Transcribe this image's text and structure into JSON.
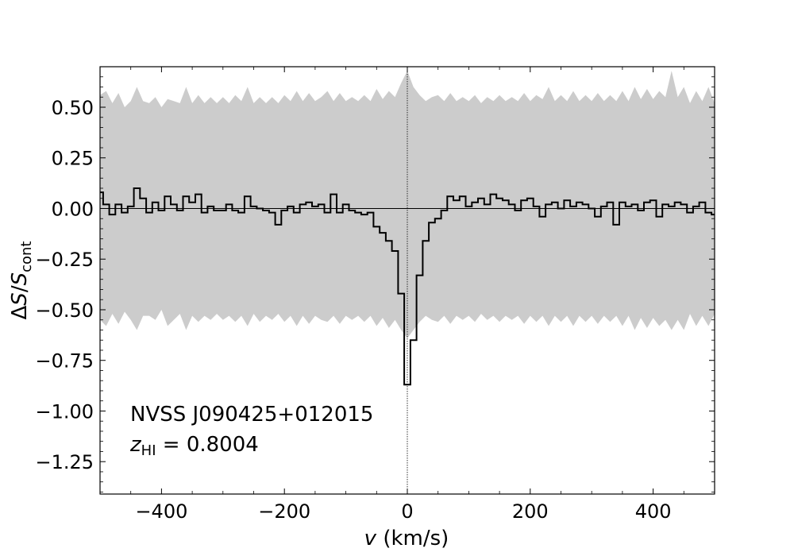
{
  "chart_data": {
    "type": "line",
    "title": "",
    "xlabel": {
      "var": "v",
      "unit": " (km/s)"
    },
    "ylabel": {
      "delta": "Δ",
      "num": "S",
      "slash": "/",
      "den": "S",
      "den_sub": "cont"
    },
    "xlim": [
      -500,
      500
    ],
    "ylim": [
      -1.41,
      0.7
    ],
    "xticks": [
      -400,
      -200,
      0,
      200,
      400
    ],
    "xtick_labels": [
      "−400",
      "−200",
      "0",
      "200",
      "400"
    ],
    "yticks": [
      0.5,
      0.25,
      0.0,
      -0.25,
      -0.5,
      -0.75,
      -1.0,
      -1.25
    ],
    "ytick_labels": [
      "0.50",
      "0.25",
      "0.00",
      "−0.25",
      "−0.50",
      "−0.75",
      "−1.00",
      "−1.25"
    ],
    "reference_lines": {
      "horizontal_y": 0.0,
      "vertical_x": 0.0
    },
    "noise_band": {
      "name": "noise envelope",
      "color": "#cccccc",
      "x": [
        -500,
        -490,
        -480,
        -470,
        -460,
        -450,
        -440,
        -430,
        -420,
        -410,
        -400,
        -390,
        -380,
        -370,
        -360,
        -350,
        -340,
        -330,
        -320,
        -310,
        -300,
        -290,
        -280,
        -270,
        -260,
        -250,
        -240,
        -230,
        -220,
        -210,
        -200,
        -190,
        -180,
        -170,
        -160,
        -150,
        -140,
        -130,
        -120,
        -110,
        -100,
        -90,
        -80,
        -70,
        -60,
        -50,
        -40,
        -30,
        -20,
        -10,
        0,
        10,
        20,
        30,
        40,
        50,
        60,
        70,
        80,
        90,
        100,
        110,
        120,
        130,
        140,
        150,
        160,
        170,
        180,
        190,
        200,
        210,
        220,
        230,
        240,
        250,
        260,
        270,
        280,
        290,
        300,
        310,
        320,
        330,
        340,
        350,
        360,
        370,
        380,
        390,
        400,
        410,
        420,
        430,
        440,
        450,
        460,
        470,
        480,
        490,
        500
      ],
      "upper": [
        0.56,
        0.58,
        0.52,
        0.57,
        0.5,
        0.53,
        0.6,
        0.53,
        0.52,
        0.55,
        0.5,
        0.54,
        0.53,
        0.52,
        0.6,
        0.52,
        0.56,
        0.52,
        0.55,
        0.52,
        0.55,
        0.52,
        0.56,
        0.53,
        0.6,
        0.52,
        0.55,
        0.52,
        0.55,
        0.52,
        0.56,
        0.53,
        0.58,
        0.53,
        0.57,
        0.53,
        0.55,
        0.58,
        0.53,
        0.57,
        0.53,
        0.55,
        0.53,
        0.56,
        0.53,
        0.59,
        0.54,
        0.58,
        0.55,
        0.62,
        0.68,
        0.6,
        0.56,
        0.53,
        0.55,
        0.56,
        0.53,
        0.57,
        0.53,
        0.55,
        0.53,
        0.56,
        0.52,
        0.55,
        0.53,
        0.56,
        0.53,
        0.55,
        0.53,
        0.57,
        0.53,
        0.56,
        0.54,
        0.6,
        0.53,
        0.56,
        0.53,
        0.58,
        0.53,
        0.56,
        0.53,
        0.57,
        0.53,
        0.56,
        0.53,
        0.58,
        0.53,
        0.6,
        0.54,
        0.59,
        0.54,
        0.58,
        0.55,
        0.68,
        0.55,
        0.6,
        0.52,
        0.58,
        0.53,
        0.6,
        0.52
      ],
      "lower": [
        -0.55,
        -0.58,
        -0.52,
        -0.57,
        -0.51,
        -0.55,
        -0.6,
        -0.53,
        -0.53,
        -0.55,
        -0.5,
        -0.58,
        -0.55,
        -0.52,
        -0.6,
        -0.53,
        -0.56,
        -0.53,
        -0.55,
        -0.52,
        -0.55,
        -0.53,
        -0.56,
        -0.53,
        -0.58,
        -0.52,
        -0.56,
        -0.53,
        -0.55,
        -0.52,
        -0.56,
        -0.53,
        -0.58,
        -0.53,
        -0.57,
        -0.53,
        -0.55,
        -0.56,
        -0.53,
        -0.57,
        -0.53,
        -0.55,
        -0.53,
        -0.56,
        -0.53,
        -0.58,
        -0.54,
        -0.59,
        -0.55,
        -0.6,
        -0.64,
        -0.6,
        -0.56,
        -0.53,
        -0.55,
        -0.56,
        -0.53,
        -0.57,
        -0.53,
        -0.55,
        -0.53,
        -0.56,
        -0.52,
        -0.55,
        -0.53,
        -0.56,
        -0.53,
        -0.55,
        -0.53,
        -0.57,
        -0.53,
        -0.56,
        -0.53,
        -0.58,
        -0.53,
        -0.56,
        -0.53,
        -0.58,
        -0.53,
        -0.56,
        -0.53,
        -0.57,
        -0.53,
        -0.56,
        -0.53,
        -0.58,
        -0.53,
        -0.6,
        -0.54,
        -0.59,
        -0.54,
        -0.58,
        -0.55,
        -0.6,
        -0.55,
        -0.6,
        -0.52,
        -0.58,
        -0.53,
        -0.58,
        -0.52
      ]
    },
    "series": [
      {
        "name": "spectrum",
        "style": "steps-mid",
        "color": "#000000",
        "x": [
          -500,
          -490,
          -480,
          -470,
          -460,
          -450,
          -440,
          -430,
          -420,
          -410,
          -400,
          -390,
          -380,
          -370,
          -360,
          -350,
          -340,
          -330,
          -320,
          -310,
          -300,
          -290,
          -280,
          -270,
          -260,
          -250,
          -240,
          -230,
          -220,
          -210,
          -200,
          -190,
          -180,
          -170,
          -160,
          -150,
          -140,
          -130,
          -120,
          -110,
          -100,
          -90,
          -80,
          -70,
          -60,
          -50,
          -40,
          -30,
          -20,
          -10,
          0,
          10,
          20,
          30,
          40,
          50,
          60,
          70,
          80,
          90,
          100,
          110,
          120,
          130,
          140,
          150,
          160,
          170,
          180,
          190,
          200,
          210,
          220,
          230,
          240,
          250,
          260,
          270,
          280,
          290,
          300,
          310,
          320,
          330,
          340,
          350,
          360,
          370,
          380,
          390,
          400,
          410,
          420,
          430,
          440,
          450,
          460,
          470,
          480,
          490,
          500
        ],
        "y": [
          0.08,
          0.02,
          -0.03,
          0.02,
          -0.02,
          0.01,
          0.1,
          0.05,
          -0.02,
          0.03,
          -0.01,
          0.06,
          0.02,
          -0.01,
          0.06,
          0.03,
          0.07,
          -0.02,
          0.01,
          -0.01,
          -0.01,
          0.02,
          -0.01,
          -0.02,
          0.06,
          0.01,
          0.0,
          -0.01,
          -0.02,
          -0.08,
          -0.01,
          0.01,
          -0.02,
          0.02,
          0.03,
          0.01,
          0.02,
          -0.02,
          0.07,
          -0.02,
          0.02,
          -0.01,
          -0.02,
          -0.03,
          -0.02,
          -0.09,
          -0.12,
          -0.16,
          -0.21,
          -0.42,
          -0.87,
          -0.65,
          -0.33,
          -0.16,
          -0.07,
          -0.05,
          -0.01,
          0.06,
          0.04,
          0.06,
          0.01,
          0.03,
          0.05,
          0.02,
          0.07,
          0.05,
          0.04,
          0.02,
          -0.01,
          0.04,
          0.05,
          0.01,
          -0.04,
          0.02,
          0.03,
          0.0,
          0.04,
          0.01,
          0.03,
          0.02,
          0.0,
          -0.04,
          0.01,
          0.03,
          -0.08,
          0.03,
          0.01,
          0.02,
          -0.01,
          0.03,
          0.04,
          -0.04,
          0.02,
          0.01,
          0.03,
          0.02,
          -0.02,
          0.01,
          0.03,
          -0.02,
          -0.03
        ]
      }
    ],
    "annotations": {
      "source_name": "NVSS J090425+012015",
      "redshift_symbol": "z",
      "redshift_sub": "HI",
      "redshift_value": " = 0.8004"
    },
    "grid": false,
    "legend": "none"
  }
}
